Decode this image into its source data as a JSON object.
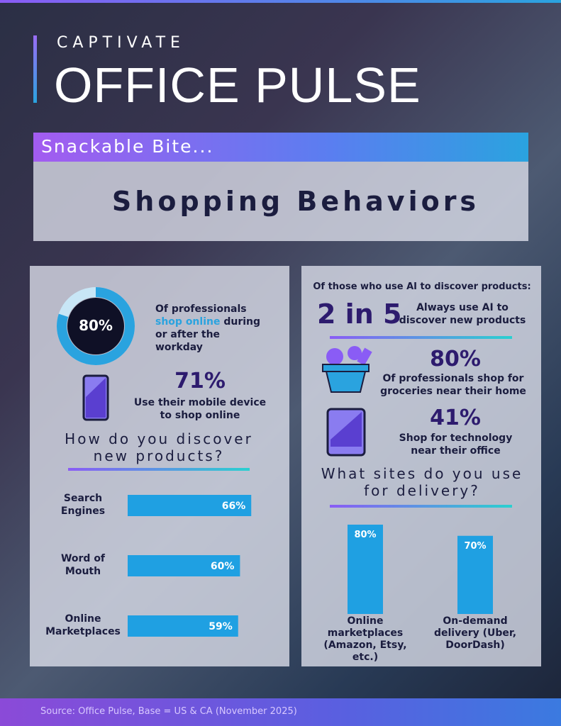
{
  "header": {
    "brand": "CAPTIVATE",
    "title": "OFFICE PULSE",
    "tag": "Snackable Bite...",
    "topic": "Shopping Behaviors"
  },
  "left": {
    "donut": {
      "value": 80,
      "label": "80%",
      "text_before": "Of professionals ",
      "highlight": "shop online",
      "text_after": " during or after the workday"
    },
    "mobile": {
      "label": "71%",
      "text": "Use their mobile device to shop online"
    },
    "discover": {
      "title": "How do you discover new products?",
      "categories": [
        "Search Engines",
        "Word of Mouth",
        "Online Marketplaces"
      ],
      "values": [
        66,
        60,
        59
      ],
      "value_labels": [
        "66%",
        "60%",
        "59%"
      ]
    }
  },
  "right": {
    "intro": "Of those who use AI to discover products:",
    "ai": {
      "label": "2 in 5",
      "text": "Always use AI to discover new products"
    },
    "groceries": {
      "label": "80%",
      "text": "Of professionals shop for groceries near their home"
    },
    "technology": {
      "label": "41%",
      "text": "Shop for technology near their office"
    },
    "delivery": {
      "title": "What sites do you use for delivery?",
      "categories": [
        "Online marketplaces (Amazon, Etsy, etc.)",
        "On-demand delivery (Uber, DoorDash)"
      ],
      "values": [
        80,
        70
      ],
      "value_labels": [
        "80%",
        "70%"
      ]
    }
  },
  "footer": "Source: Office Pulse, Base = US & CA (November 2025)"
}
